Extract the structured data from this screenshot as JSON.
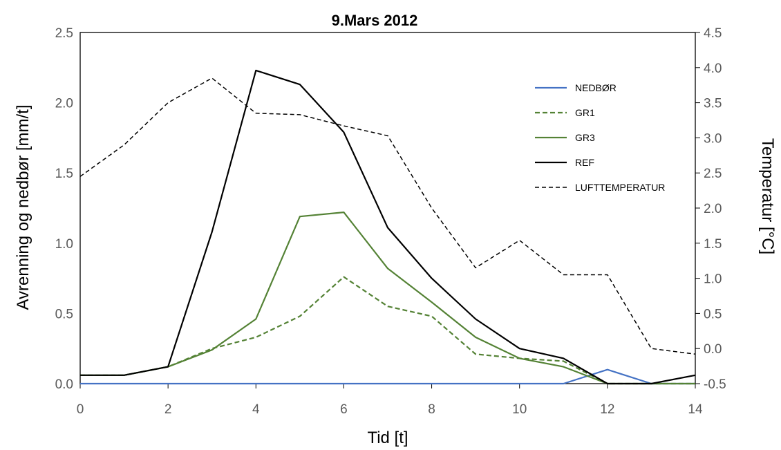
{
  "chart_data": {
    "type": "line",
    "title": "9.Mars 2012",
    "xlabel": "Tid [t]",
    "ylabel": "Avrenning og nedbør [mm/t]",
    "y2label": "Temperatur [°C]",
    "x": [
      0,
      1,
      2,
      3,
      4,
      5,
      6,
      7,
      8,
      9,
      10,
      11,
      12,
      13,
      14
    ],
    "xlim": [
      0,
      14
    ],
    "ylim": [
      0,
      2.5
    ],
    "y2lim": [
      -0.5,
      4.5
    ],
    "xticks": [
      "0",
      "2",
      "4",
      "6",
      "8",
      "10",
      "12",
      "14"
    ],
    "yticks": [
      "0.0",
      "0.5",
      "1.0",
      "1.5",
      "2.0",
      "2.5"
    ],
    "y2ticks": [
      "-0.5",
      "0.0",
      "0.5",
      "1.0",
      "1.5",
      "2.0",
      "2.5",
      "3.0",
      "3.5",
      "4.0",
      "4.5"
    ],
    "grid": false,
    "legend_position": "top-right",
    "series": [
      {
        "name": "NEDBØR",
        "axis": "left",
        "color": "#4472C4",
        "style": "solid",
        "values": [
          0,
          0,
          0,
          0,
          0,
          0,
          0,
          0,
          0,
          0,
          0,
          0,
          0.1,
          0,
          0
        ]
      },
      {
        "name": "GR1",
        "axis": "left",
        "color": "#548235",
        "style": "dashed",
        "values": [
          0.06,
          0.06,
          0.12,
          0.25,
          0.33,
          0.48,
          0.76,
          0.55,
          0.48,
          0.21,
          0.18,
          0.16,
          0,
          0,
          0
        ]
      },
      {
        "name": "GR3",
        "axis": "left",
        "color": "#548235",
        "style": "solid",
        "values": [
          0.06,
          0.06,
          0.12,
          0.24,
          0.46,
          1.19,
          1.22,
          0.82,
          0.58,
          0.33,
          0.18,
          0.12,
          0,
          0,
          0
        ]
      },
      {
        "name": "REF",
        "axis": "left",
        "color": "#000000",
        "style": "solid",
        "values": [
          0.06,
          0.06,
          0.12,
          1.08,
          2.23,
          2.13,
          1.79,
          1.11,
          0.75,
          0.46,
          0.25,
          0.18,
          0,
          0,
          0.06
        ]
      },
      {
        "name": "LUFTTEMPERATUR",
        "axis": "right",
        "color": "#000000",
        "style": "dashed",
        "values": [
          2.45,
          2.9,
          3.5,
          3.85,
          3.35,
          3.33,
          3.17,
          3.03,
          2.0,
          1.15,
          1.54,
          1.05,
          1.05,
          0.0,
          -0.08
        ]
      }
    ]
  }
}
